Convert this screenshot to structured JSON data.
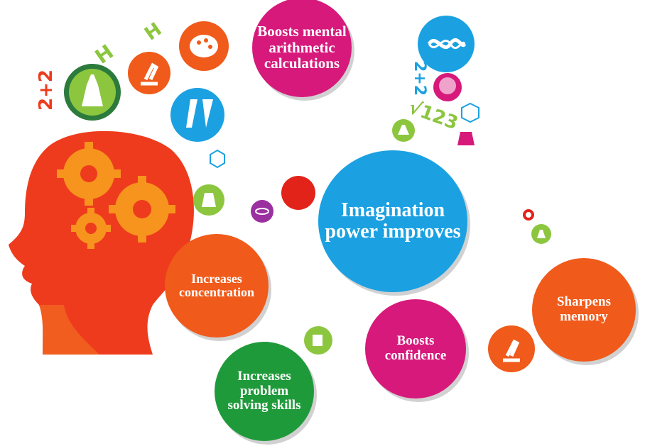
{
  "center": {
    "label": "Imagination power improves",
    "color": "#1ba1e2"
  },
  "benefits": [
    {
      "id": "arithmetic",
      "label": "Boosts mental arithmetic calculations",
      "color": "#d6197b"
    },
    {
      "id": "concentration",
      "label": "Increases concentration",
      "color": "#f05a1a"
    },
    {
      "id": "problem-solving",
      "label": "Increases problem solving skills",
      "color": "#1f9a3a"
    },
    {
      "id": "confidence",
      "label": "Boosts confidence",
      "color": "#d6197b"
    },
    {
      "id": "memory",
      "label": "Sharpens memory",
      "color": "#f05a1a"
    }
  ],
  "doodles": {
    "two_plus_two_left": "2+2",
    "two_plus_two_right": "2+2",
    "root_123": "√123",
    "h_letter": "H"
  },
  "icons": [
    "head-with-gears-icon",
    "bell-icon",
    "microscope-icon",
    "palette-icon",
    "drawing-tools-icon",
    "dna-icon",
    "globe-icon",
    "flask-icon",
    "atom-icon",
    "cube-icon",
    "notebook-icon"
  ]
}
